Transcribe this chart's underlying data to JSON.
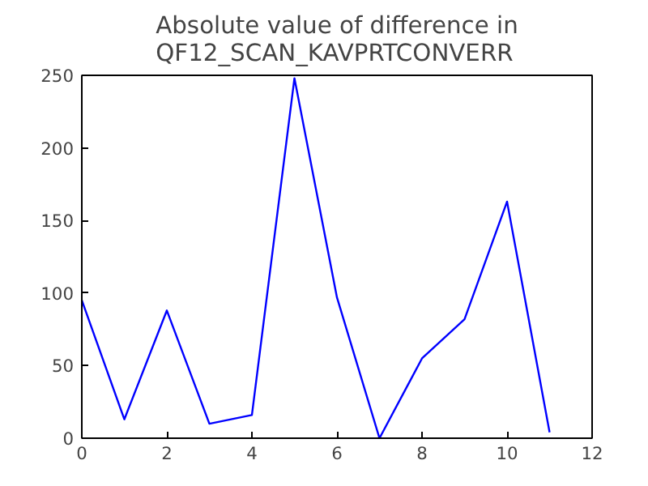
{
  "chart_data": {
    "type": "line",
    "title": "Absolute value of difference in\nQF12_SCAN_KAVPRTCONVERR",
    "x": [
      0,
      1,
      2,
      3,
      4,
      5,
      6,
      7,
      8,
      9,
      10,
      11
    ],
    "series": [
      {
        "color": "#0000ff",
        "values": [
          95,
          13,
          88,
          10,
          16,
          248,
          97,
          0,
          55,
          82,
          163,
          4
        ]
      }
    ],
    "xlim": [
      0,
      12
    ],
    "xticks": [
      0,
      2,
      4,
      6,
      8,
      10,
      12
    ],
    "ylim": [
      0,
      250
    ],
    "yticks": [
      0,
      50,
      100,
      150,
      200,
      250
    ],
    "grid": false,
    "marker": "none",
    "line_style": "solid"
  }
}
